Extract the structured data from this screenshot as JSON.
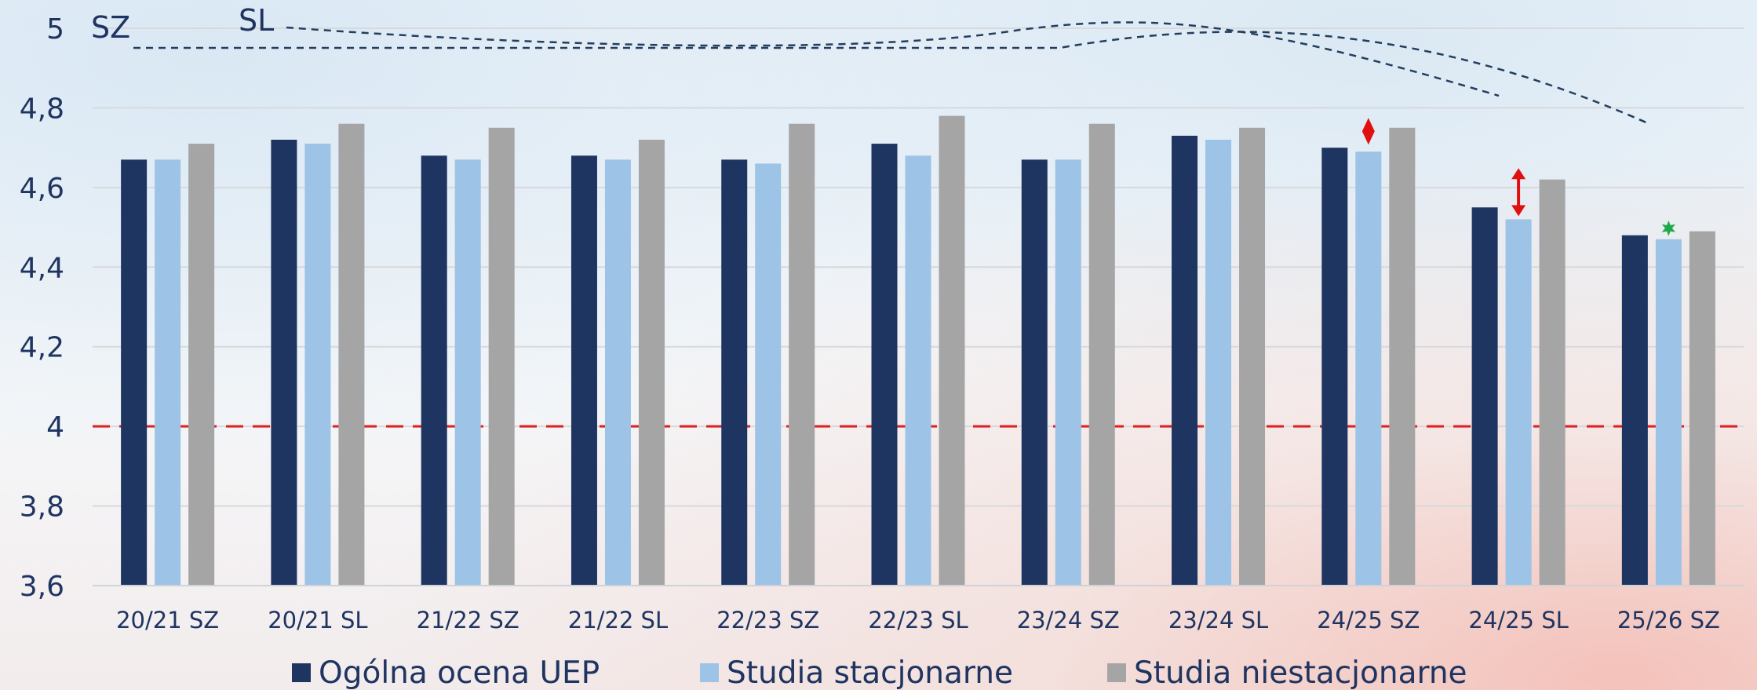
{
  "chart_data": {
    "type": "bar",
    "categories": [
      "20/21 SZ",
      "20/21 SL",
      "21/22 SZ",
      "21/22 SL",
      "22/23 SZ",
      "22/23 SL",
      "23/24 SZ",
      "23/24 SL",
      "24/25 SZ",
      "24/25 SL",
      "25/26 SZ"
    ],
    "series": [
      {
        "name": "Ogólna ocena UEP",
        "color": "#1f3561",
        "values": [
          4.67,
          4.72,
          4.68,
          4.68,
          4.67,
          4.71,
          4.67,
          4.73,
          4.7,
          4.55,
          4.48
        ]
      },
      {
        "name": "Studia stacjonarne",
        "color": "#9dc3e6",
        "values": [
          4.67,
          4.71,
          4.67,
          4.67,
          4.66,
          4.68,
          4.67,
          4.72,
          4.69,
          4.52,
          4.47
        ]
      },
      {
        "name": "Studia niestacjonarne",
        "color": "#a5a5a5",
        "values": [
          4.71,
          4.76,
          4.75,
          4.72,
          4.76,
          4.78,
          4.76,
          4.75,
          4.75,
          4.62,
          4.49
        ]
      }
    ],
    "y_ticks": [
      "3,6",
      "3,8",
      "4",
      "4,2",
      "4,4",
      "4,6",
      "4,8",
      "5"
    ],
    "ylim": [
      3.6,
      5.0
    ],
    "reference_line": {
      "value": 4.0,
      "color": "#e02020",
      "style": "dashed"
    },
    "legend_position": "bottom",
    "grid": true,
    "annotations": [
      {
        "text": "SZ",
        "series": "Studia stacjonarne",
        "style": "dashed trend curve"
      },
      {
        "text": "SL",
        "series": "Studia stacjonarne",
        "style": "dashed trend curve"
      }
    ],
    "markers": [
      {
        "category": "24/25 SZ",
        "symbol": "diamond",
        "color": "#e01010"
      },
      {
        "category": "24/25 SL",
        "symbol": "double-arrow",
        "color": "#e01010"
      },
      {
        "category": "25/26 SZ",
        "symbol": "star",
        "color": "#1faa4a"
      }
    ]
  }
}
